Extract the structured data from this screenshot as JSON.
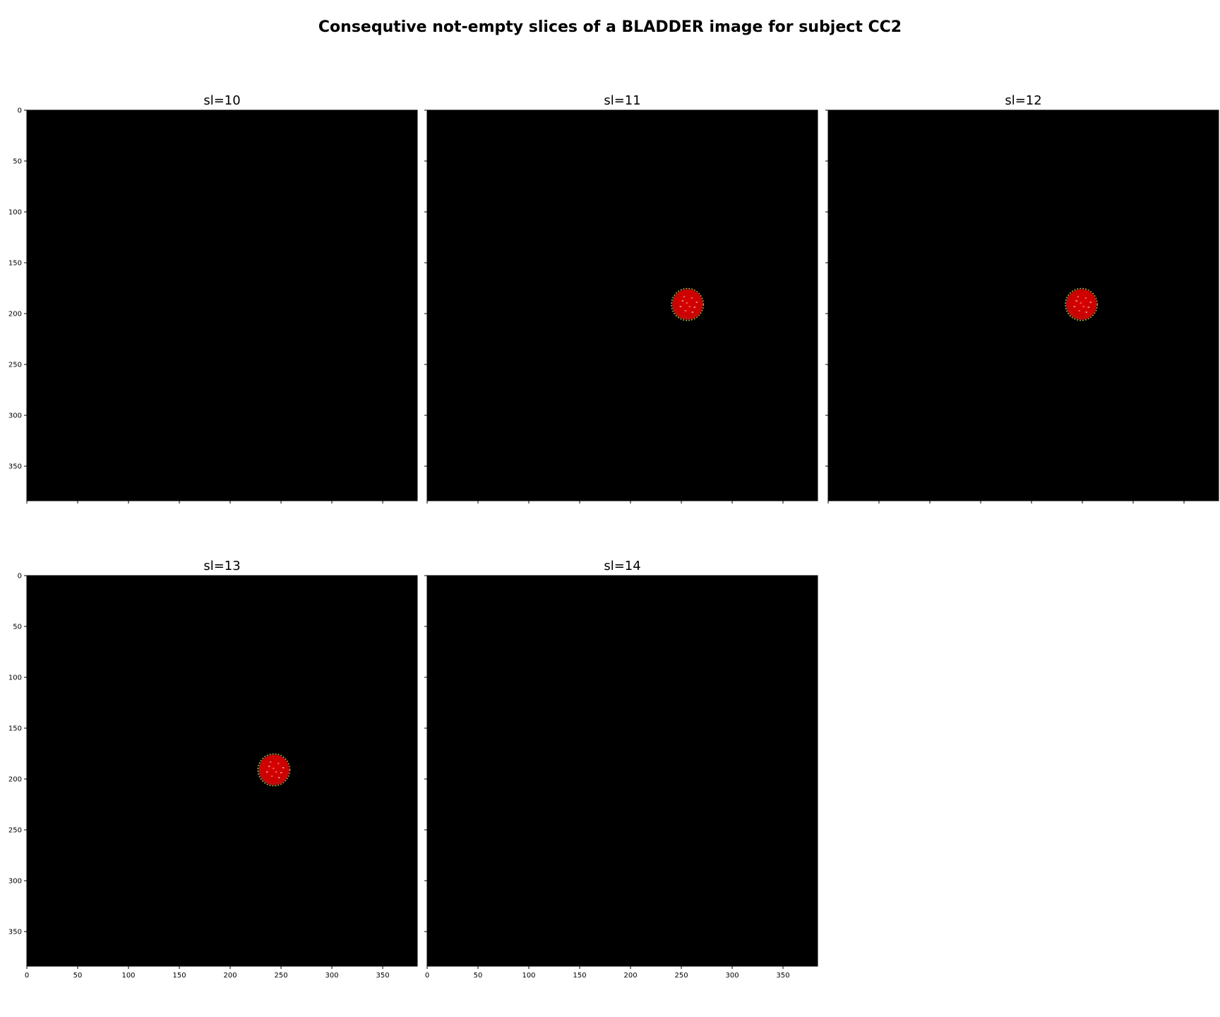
{
  "figure": {
    "title": "Consequtive not-empty slices of a BLADDER image for subject CC2"
  },
  "chart_data": {
    "type": "heatmap",
    "layout": {
      "rows": 2,
      "cols": 3
    },
    "image_extent": {
      "x": [
        0,
        384
      ],
      "y": [
        0,
        384
      ]
    },
    "xticks": [
      0,
      50,
      100,
      150,
      200,
      250,
      300,
      350
    ],
    "yticks": [
      0,
      50,
      100,
      150,
      200,
      250,
      300,
      350
    ],
    "y_inverted": true,
    "background_color": "#000000",
    "region_color": "#d40000",
    "region_edge_color": "#b8b040",
    "panels": [
      {
        "title": "sl=10",
        "region": null,
        "show_xtick_labels": false,
        "show_ytick_labels": true
      },
      {
        "title": "sl=11",
        "region": {
          "cx": 256,
          "cy": 191,
          "r": 15
        },
        "show_xtick_labels": false,
        "show_ytick_labels": false
      },
      {
        "title": "sl=12",
        "region": {
          "cx": 249,
          "cy": 191,
          "r": 15
        },
        "show_xtick_labels": false,
        "show_ytick_labels": false
      },
      {
        "title": "sl=13",
        "region": {
          "cx": 243,
          "cy": 191,
          "r": 15
        },
        "show_xtick_labels": true,
        "show_ytick_labels": true
      },
      {
        "title": "sl=14",
        "region": null,
        "show_xtick_labels": true,
        "show_ytick_labels": false
      }
    ]
  }
}
